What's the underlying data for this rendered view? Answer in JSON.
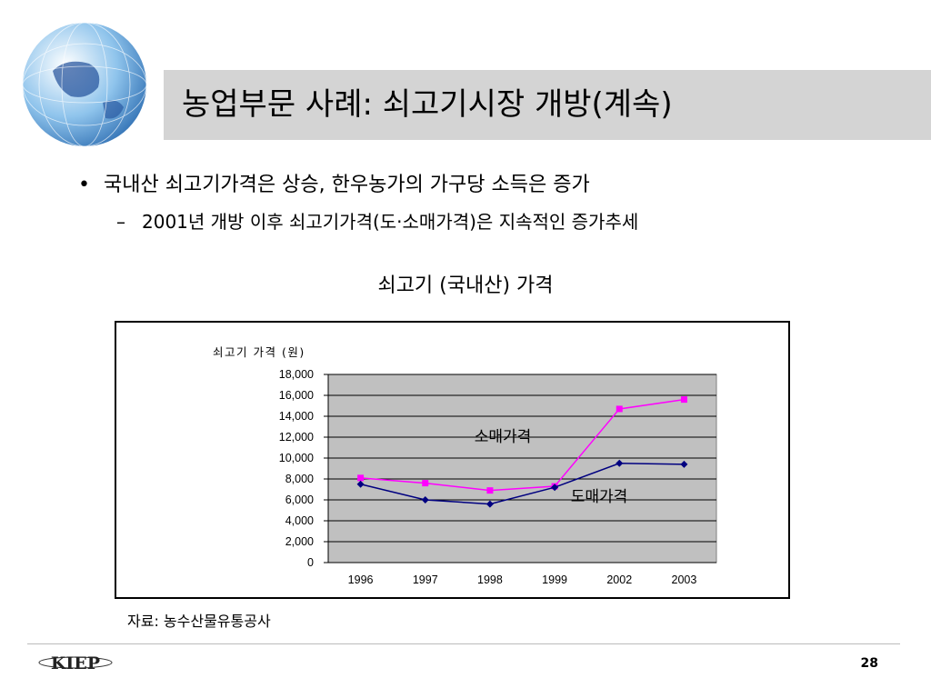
{
  "slide": {
    "title": "농업부문 사례: 쇠고기시장 개방(계속)",
    "bullet_1": "국내산 쇠고기가격은 상승, 한우농가의 가구당 소득은 증가",
    "bullet_1_marker": "•",
    "bullet_2": "2001년 개방 이후 쇠고기가격(도·소매가격)은 지속적인 증가추세",
    "bullet_2_marker": "–",
    "chart_heading": "쇠고기 (국내산) 가격",
    "source": "자료: 농수산물유통공사",
    "page_number": "28",
    "logo_text": "KIEP"
  },
  "colors": {
    "title_bar": "#d4d4d4",
    "plot_area": "#c0c0c0",
    "retail_series": "#ff00ff",
    "wholesale_series": "#000080"
  },
  "chart_data": {
    "type": "line",
    "ylabel": "쇠고기 가격 (원)",
    "categories": [
      "1996",
      "1997",
      "1998",
      "1999",
      "2002",
      "2003"
    ],
    "ylim": [
      0,
      18000
    ],
    "yticks": [
      "18,000",
      "16,000",
      "14,000",
      "12,000",
      "10,000",
      "8,000",
      "6,000",
      "4,000",
      "2,000",
      "0"
    ],
    "grid": true,
    "legend": "none",
    "series": [
      {
        "name": "소매가격",
        "marker": "square",
        "values": [
          8100,
          7600,
          6900,
          7300,
          14700,
          15600
        ]
      },
      {
        "name": "도매가격",
        "marker": "diamond",
        "values": [
          7500,
          6000,
          5600,
          7200,
          9500,
          9400
        ]
      }
    ]
  }
}
